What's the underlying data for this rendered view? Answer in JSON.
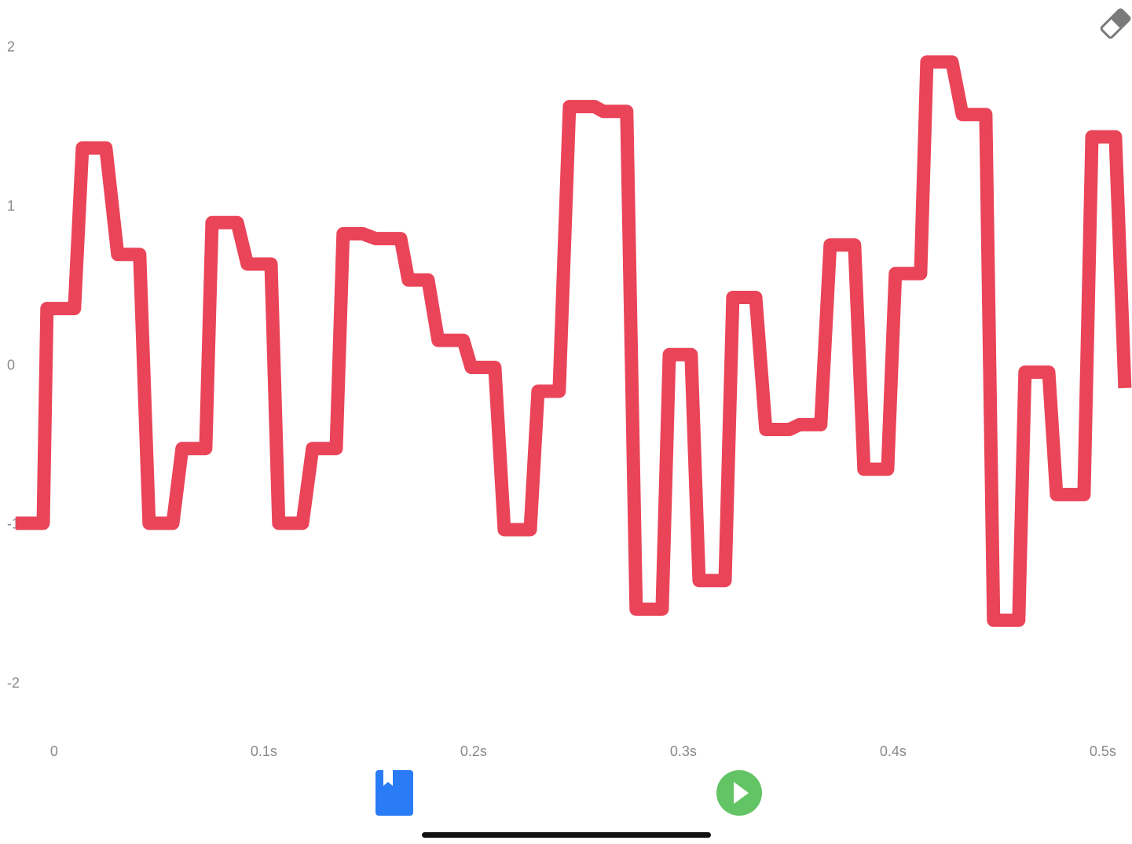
{
  "chart_data": {
    "type": "line",
    "x": [
      -0.0184,
      -0.0052,
      -0.0034,
      0.0097,
      0.0135,
      0.0247,
      0.0303,
      0.0408,
      0.0453,
      0.0566,
      0.061,
      0.0723,
      0.0753,
      0.0873,
      0.0921,
      0.1034,
      0.1071,
      0.1184,
      0.1232,
      0.1345,
      0.1378,
      0.1472,
      0.1532,
      0.1652,
      0.1689,
      0.1783,
      0.1831,
      0.1951,
      0.1989,
      0.2101,
      0.2146,
      0.227,
      0.2307,
      0.2408,
      0.2457,
      0.2577,
      0.2618,
      0.273,
      0.2775,
      0.2899,
      0.2933,
      0.3037,
      0.3075,
      0.3199,
      0.3236,
      0.3345,
      0.3393,
      0.3506,
      0.3554,
      0.3655,
      0.37,
      0.3816,
      0.3861,
      0.3974,
      0.4011,
      0.4131,
      0.4161,
      0.4281,
      0.433,
      0.4442,
      0.4479,
      0.4599,
      0.4629,
      0.4742,
      0.4779,
      0.491,
      0.4948,
      0.506,
      0.5105
    ],
    "values": [
      -0.99,
      -0.99,
      0.36,
      0.36,
      1.37,
      1.37,
      0.7,
      0.7,
      -0.99,
      -0.99,
      -0.52,
      -0.52,
      0.9,
      0.9,
      0.64,
      0.64,
      -0.99,
      -0.99,
      -0.52,
      -0.52,
      0.83,
      0.83,
      0.8,
      0.8,
      0.54,
      0.54,
      0.16,
      0.16,
      -0.01,
      -0.01,
      -1.03,
      -1.03,
      -0.16,
      -0.16,
      1.63,
      1.63,
      1.6,
      1.6,
      -1.53,
      -1.53,
      0.07,
      0.07,
      -1.35,
      -1.35,
      0.43,
      0.43,
      -0.4,
      -0.4,
      -0.37,
      -0.37,
      0.76,
      0.76,
      -0.65,
      -0.65,
      0.58,
      0.58,
      1.91,
      1.91,
      1.58,
      1.58,
      -1.6,
      -1.6,
      -0.04,
      -0.04,
      -0.81,
      -0.81,
      1.44,
      1.44,
      -0.14
    ],
    "color": "#ea4459",
    "xlim": [
      -0.0258,
      0.5139
    ],
    "xticks": [
      0,
      {
        "value": 0.1,
        "label": "0.1s"
      },
      {
        "value": 0.2,
        "label": "0.2s"
      },
      {
        "value": 0.3,
        "label": "0.3s"
      },
      {
        "value": 0.4,
        "label": "0.4s"
      },
      {
        "value": 0.5,
        "label": "0.5s"
      }
    ],
    "ylim": [
      -2.3,
      2.3
    ],
    "yticks": [
      2,
      1,
      0,
      -1,
      -2
    ]
  }
}
